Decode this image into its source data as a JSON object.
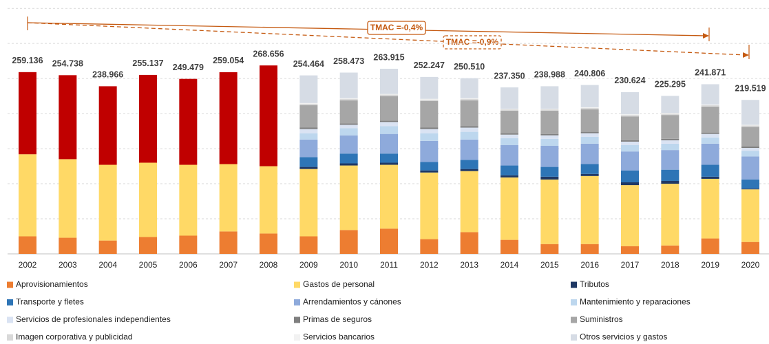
{
  "chart_data": {
    "type": "stacked_bar",
    "categories": [
      "2002",
      "2003",
      "2004",
      "2005",
      "2006",
      "2007",
      "2008",
      "2009",
      "2010",
      "2011",
      "2012",
      "2013",
      "2014",
      "2015",
      "2016",
      "2017",
      "2018",
      "2019",
      "2020"
    ],
    "series": [
      {
        "name": "Aprovisionamientos",
        "color": "#ed7d31",
        "values": [
          25000,
          23000,
          19000,
          24000,
          26000,
          32000,
          29000,
          25000,
          34000,
          36000,
          21000,
          31000,
          20000,
          14000,
          14000,
          11000,
          12000,
          22000,
          17000
        ]
      },
      {
        "name": "Gastos de personal",
        "color": "#ffd966",
        "values": [
          117000,
          112000,
          108000,
          106000,
          101000,
          96000,
          96000,
          96000,
          92000,
          91000,
          95000,
          87000,
          89000,
          92000,
          97000,
          87000,
          88000,
          85000,
          75000
        ]
      },
      {
        "name": null,
        "color": "#c00000",
        "values": [
          117136,
          119738,
          111966,
          125137,
          122479,
          131054,
          143656,
          null,
          null,
          null,
          null,
          null,
          null,
          null,
          null,
          null,
          null,
          null,
          null
        ]
      },
      {
        "name": "Tributos",
        "color": "#1f3864",
        "values": [
          null,
          null,
          null,
          null,
          null,
          null,
          null,
          3000,
          3000,
          3000,
          3000,
          3000,
          3000,
          4000,
          3000,
          4000,
          4000,
          3000,
          1000
        ]
      },
      {
        "name": "Transporte y fletes",
        "color": "#2e75b6",
        "values": [
          null,
          null,
          null,
          null,
          null,
          null,
          null,
          14000,
          14000,
          13000,
          12000,
          13000,
          14000,
          14000,
          14000,
          17000,
          16000,
          17000,
          13000
        ]
      },
      {
        "name": "Arrendamientos y cánones",
        "color": "#8eaadb",
        "values": [
          null,
          null,
          null,
          null,
          null,
          null,
          null,
          25000,
          26000,
          28000,
          30000,
          29000,
          29000,
          30000,
          29000,
          27000,
          28000,
          30000,
          33000
        ]
      },
      {
        "name": "Mantenimiento y reparaciones",
        "color": "#bdd7ee",
        "values": [
          null,
          null,
          null,
          null,
          null,
          null,
          null,
          9000,
          10000,
          11000,
          11000,
          11000,
          10000,
          10000,
          10000,
          9000,
          9000,
          9000,
          8000
        ]
      },
      {
        "name": "Servicios de profesionales independientes",
        "color": "#dae3f3",
        "values": [
          null,
          null,
          null,
          null,
          null,
          null,
          null,
          6000,
          5000,
          6000,
          6000,
          6000,
          5000,
          5000,
          5000,
          5000,
          5000,
          5000,
          4000
        ]
      },
      {
        "name": "Primas de seguros",
        "color": "#7f7f7f",
        "values": [
          null,
          null,
          null,
          null,
          null,
          null,
          null,
          2000,
          2000,
          2000,
          2000,
          2000,
          2000,
          2000,
          2000,
          2000,
          2000,
          2000,
          2000
        ]
      },
      {
        "name": "Suministros",
        "color": "#a6a6a6",
        "values": [
          null,
          null,
          null,
          null,
          null,
          null,
          null,
          32000,
          33000,
          35000,
          38000,
          37000,
          32000,
          33000,
          32000,
          34000,
          34000,
          37000,
          28000
        ]
      },
      {
        "name": "Imagen corporativa y publicidad",
        "color": "#d9d9d9",
        "values": [
          null,
          null,
          null,
          null,
          null,
          null,
          null,
          2000,
          2000,
          2000,
          2000,
          2000,
          2000,
          2000,
          2000,
          2000,
          2000,
          2000,
          2000
        ]
      },
      {
        "name": "Servicios bancarios",
        "color": "#f2f2f2",
        "values": [
          null,
          null,
          null,
          null,
          null,
          null,
          null,
          1000,
          1000,
          1000,
          1000,
          1000,
          1000,
          1000,
          1000,
          1000,
          1000,
          1000,
          1000
        ]
      },
      {
        "name": "Otros servicios y gastos",
        "color": "#d6dce5",
        "values": [
          null,
          null,
          null,
          null,
          null,
          null,
          null,
          39464,
          36473,
          35915,
          31247,
          28510,
          30350,
          31988,
          31806,
          31624,
          24295,
          28871,
          35519
        ]
      }
    ],
    "totals": [
      259136,
      254738,
      238966,
      255137,
      249479,
      259054,
      268656,
      254464,
      258473,
      263915,
      252247,
      250510,
      237350,
      238988,
      240806,
      230624,
      225295,
      241871,
      219519
    ],
    "value_labels": [
      "259.136",
      "254.738",
      "238.966",
      "255.137",
      "249.479",
      "259.054",
      "268.656",
      "254.464",
      "258.473",
      "263.915",
      "252.247",
      "250.510",
      "237.350",
      "238.988",
      "240.806",
      "230.624",
      "225.295",
      "241.871",
      "219.519"
    ],
    "annotations": [
      "TMAC =-0,4%",
      "TMAC =-0,9%"
    ],
    "ylim": [
      0,
      360000
    ],
    "yticks": [
      0,
      50000,
      100000,
      150000,
      200000,
      250000,
      300000,
      350000
    ],
    "grid": true
  }
}
